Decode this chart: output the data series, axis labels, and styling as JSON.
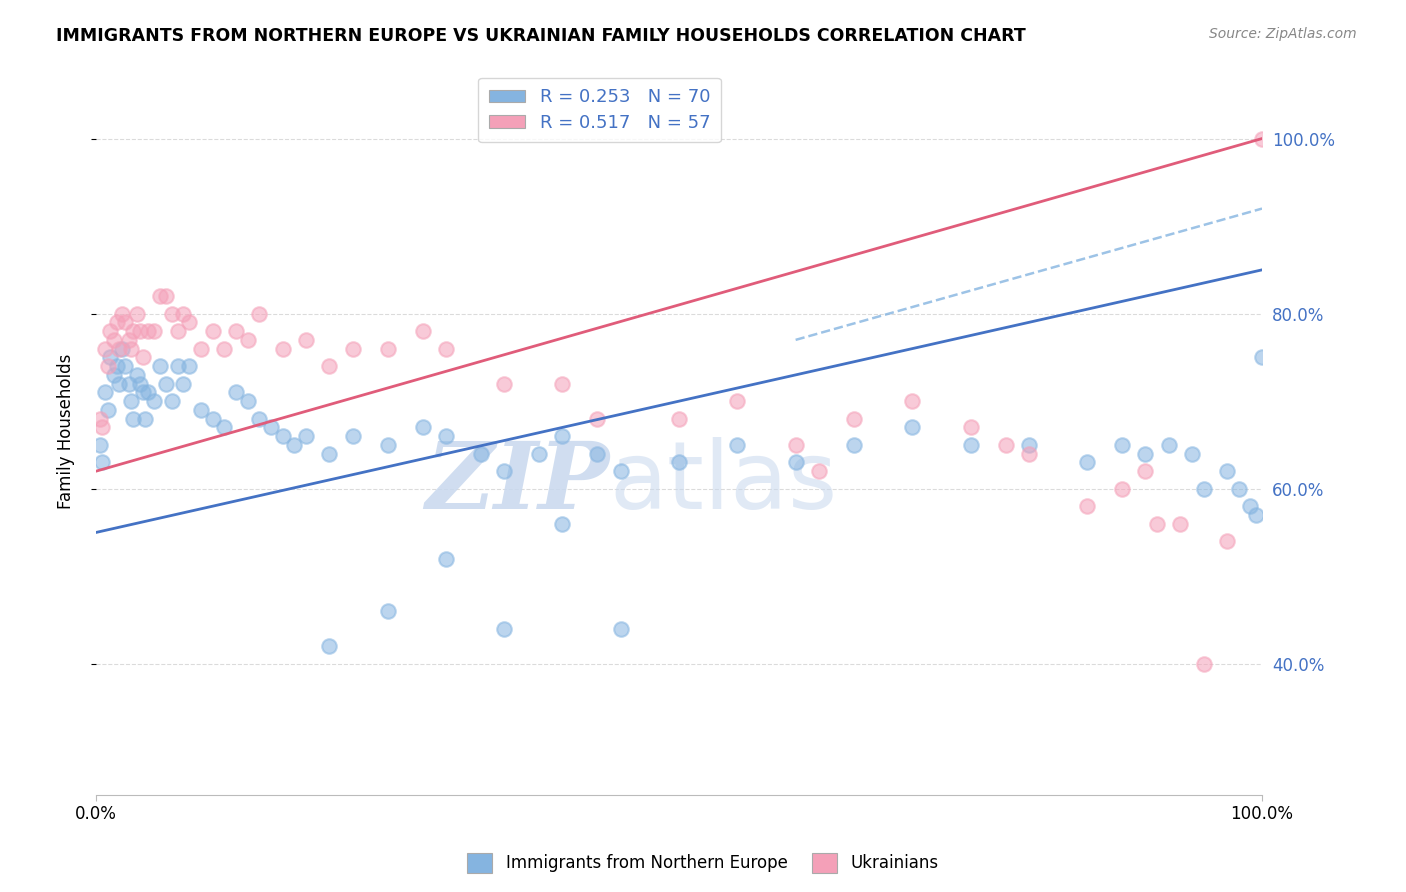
{
  "title": "IMMIGRANTS FROM NORTHERN EUROPE VS UKRAINIAN FAMILY HOUSEHOLDS CORRELATION CHART",
  "source": "Source: ZipAtlas.com",
  "ylabel": "Family Households",
  "watermark_zip": "ZIP",
  "watermark_atlas": "atlas",
  "blue_R": 0.253,
  "blue_N": 70,
  "pink_R": 0.517,
  "pink_N": 57,
  "blue_label": "Immigrants from Northern Europe",
  "pink_label": "Ukrainians",
  "blue_color": "#85B4E0",
  "pink_color": "#F4A0B8",
  "blue_line_color": "#4472C4",
  "pink_line_color": "#E05C7A",
  "dash_color": "#85B4E0",
  "grid_color": "#CCCCCC",
  "background": "#FFFFFF",
  "blue_x": [
    0.3,
    0.5,
    0.8,
    1.0,
    1.2,
    1.5,
    1.8,
    2.0,
    2.2,
    2.5,
    2.8,
    3.0,
    3.2,
    3.5,
    3.8,
    4.0,
    4.2,
    4.5,
    5.0,
    5.5,
    6.0,
    6.5,
    7.0,
    7.5,
    8.0,
    9.0,
    10.0,
    11.0,
    12.0,
    13.0,
    14.0,
    15.0,
    16.0,
    17.0,
    18.0,
    20.0,
    22.0,
    25.0,
    28.0,
    30.0,
    33.0,
    35.0,
    38.0,
    40.0,
    43.0,
    45.0,
    50.0,
    55.0,
    60.0,
    65.0,
    70.0,
    75.0,
    80.0,
    85.0,
    88.0,
    90.0,
    92.0,
    94.0,
    95.0,
    97.0,
    98.0,
    99.0,
    99.5,
    100.0,
    40.0,
    20.0,
    25.0,
    30.0,
    35.0,
    45.0
  ],
  "blue_y": [
    65,
    63,
    71,
    69,
    75,
    73,
    74,
    72,
    76,
    74,
    72,
    70,
    68,
    73,
    72,
    71,
    68,
    71,
    70,
    74,
    72,
    70,
    74,
    72,
    74,
    69,
    68,
    67,
    71,
    70,
    68,
    67,
    66,
    65,
    66,
    64,
    66,
    65,
    67,
    66,
    64,
    62,
    64,
    66,
    64,
    62,
    63,
    65,
    63,
    65,
    67,
    65,
    65,
    63,
    65,
    64,
    65,
    64,
    60,
    62,
    60,
    58,
    57,
    75,
    56,
    42,
    46,
    52,
    44,
    44
  ],
  "pink_x": [
    0.3,
    0.5,
    0.8,
    1.0,
    1.2,
    1.5,
    1.8,
    2.0,
    2.2,
    2.5,
    2.8,
    3.0,
    3.2,
    3.5,
    3.8,
    4.0,
    4.5,
    5.0,
    5.5,
    6.0,
    6.5,
    7.0,
    7.5,
    8.0,
    9.0,
    10.0,
    11.0,
    12.0,
    13.0,
    14.0,
    16.0,
    18.0,
    20.0,
    22.0,
    25.0,
    28.0,
    30.0,
    35.0,
    40.0,
    43.0,
    50.0,
    55.0,
    60.0,
    62.0,
    65.0,
    70.0,
    75.0,
    78.0,
    80.0,
    85.0,
    88.0,
    90.0,
    91.0,
    93.0,
    95.0,
    97.0,
    100.0
  ],
  "pink_y": [
    68,
    67,
    76,
    74,
    78,
    77,
    79,
    76,
    80,
    79,
    77,
    76,
    78,
    80,
    78,
    75,
    78,
    78,
    82,
    82,
    80,
    78,
    80,
    79,
    76,
    78,
    76,
    78,
    77,
    80,
    76,
    77,
    74,
    76,
    76,
    78,
    76,
    72,
    72,
    68,
    68,
    70,
    65,
    62,
    68,
    70,
    67,
    65,
    64,
    58,
    60,
    62,
    56,
    56,
    40,
    54,
    100
  ],
  "ytick_values": [
    40,
    60,
    80,
    100
  ],
  "right_ytick_labels": [
    "40.0%",
    "60.0%",
    "80.0%",
    "100.0%"
  ],
  "xlim": [
    0,
    100
  ],
  "ylim": [
    25,
    108
  ],
  "blue_line_start_x": 0,
  "blue_line_end_x": 100,
  "blue_line_start_y": 55,
  "blue_line_end_y": 85,
  "pink_line_start_x": 0,
  "pink_line_end_x": 100,
  "pink_line_start_y": 62,
  "pink_line_end_y": 100,
  "dash_start_x": 60,
  "dash_end_x": 100,
  "dash_start_y": 77,
  "dash_end_y": 92
}
